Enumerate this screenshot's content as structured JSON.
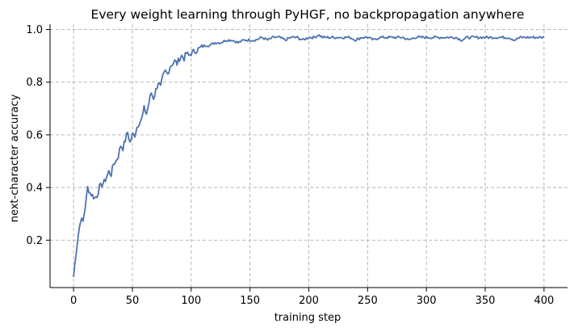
{
  "chart_data": {
    "type": "line",
    "title": "Every weight learning through PyHGF, no backpropagation anywhere",
    "xlabel": "training step",
    "ylabel": "next-character accuracy",
    "xlim": [
      -20,
      420
    ],
    "ylim": [
      0.02,
      1.02
    ],
    "xticks": [
      0,
      50,
      100,
      150,
      200,
      250,
      300,
      350,
      400
    ],
    "yticks": [
      0.2,
      0.4,
      0.6,
      0.8,
      1.0
    ],
    "ytick_labels": [
      "0.2",
      "0.4",
      "0.6",
      "0.8",
      "1.0"
    ],
    "grid": true,
    "legend": "none",
    "color": "#4c72b0",
    "series": [
      {
        "x": [
          0,
          2,
          4,
          6,
          8,
          10,
          12,
          14,
          16,
          18,
          20,
          22,
          24,
          26,
          28,
          30,
          32,
          34,
          36,
          38,
          40,
          42,
          44,
          46,
          48,
          50,
          52,
          54,
          56,
          58,
          60,
          62,
          64,
          66,
          68,
          70,
          72,
          74,
          76,
          78,
          80,
          82,
          84,
          86,
          88,
          90,
          92,
          94,
          96,
          98,
          100,
          104,
          108,
          112,
          116,
          120,
          125,
          130,
          135,
          140,
          145,
          150,
          155,
          160,
          165,
          170,
          175,
          180,
          185,
          190,
          195,
          200,
          205,
          208,
          212,
          216,
          220,
          225,
          230,
          235,
          240,
          245,
          250,
          255,
          260,
          265,
          270,
          275,
          280,
          285,
          290,
          295,
          300,
          305,
          310,
          315,
          320,
          325,
          330,
          335,
          340,
          345,
          350,
          355,
          360,
          365,
          370,
          375,
          380,
          385,
          390,
          395,
          400
        ],
        "y": [
          0.06,
          0.15,
          0.22,
          0.28,
          0.27,
          0.33,
          0.4,
          0.38,
          0.37,
          0.36,
          0.37,
          0.4,
          0.41,
          0.42,
          0.44,
          0.46,
          0.45,
          0.49,
          0.5,
          0.52,
          0.56,
          0.55,
          0.58,
          0.61,
          0.57,
          0.6,
          0.6,
          0.63,
          0.65,
          0.66,
          0.7,
          0.68,
          0.72,
          0.76,
          0.74,
          0.77,
          0.8,
          0.78,
          0.82,
          0.84,
          0.83,
          0.86,
          0.87,
          0.88,
          0.87,
          0.89,
          0.9,
          0.89,
          0.91,
          0.9,
          0.91,
          0.92,
          0.93,
          0.94,
          0.94,
          0.95,
          0.95,
          0.96,
          0.96,
          0.95,
          0.96,
          0.96,
          0.96,
          0.97,
          0.96,
          0.97,
          0.97,
          0.96,
          0.97,
          0.97,
          0.96,
          0.97,
          0.97,
          0.98,
          0.97,
          0.97,
          0.97,
          0.97,
          0.97,
          0.97,
          0.96,
          0.97,
          0.97,
          0.96,
          0.97,
          0.97,
          0.97,
          0.97,
          0.97,
          0.96,
          0.97,
          0.97,
          0.97,
          0.97,
          0.97,
          0.97,
          0.97,
          0.97,
          0.96,
          0.97,
          0.97,
          0.97,
          0.97,
          0.97,
          0.97,
          0.97,
          0.97,
          0.96,
          0.97,
          0.97,
          0.97,
          0.97,
          0.97
        ]
      }
    ]
  }
}
